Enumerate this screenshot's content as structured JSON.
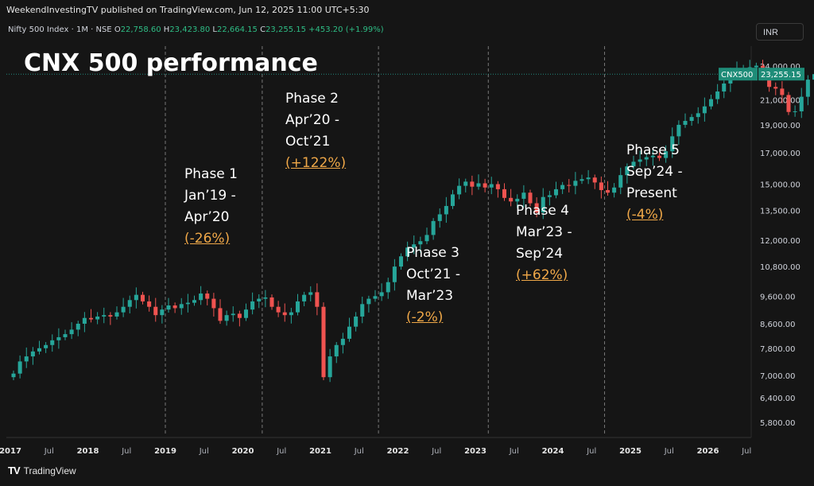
{
  "header": {
    "publisher": "WeekendInvestingTV published on TradingView.com, Jun 12, 2025 11:00 UTC+5:30",
    "symbol": "Nifty 500 Index · 1M · NSE",
    "open_label": "O",
    "open": "22,758.60",
    "high_label": "H",
    "high": "23,423.80",
    "low_label": "L",
    "low": "22,664.15",
    "close_label": "C",
    "close": "23,255.15",
    "change": "+453.20 (+1.99%)",
    "currency_button": "INR"
  },
  "title": "CNX 500 performance",
  "phases": [
    {
      "name": "Phase 1",
      "range": "Jan’19 -",
      "end": "Apr’20",
      "pct": "(-26%)"
    },
    {
      "name": "Phase 2",
      "range": "Apr’20 -",
      "end": "Oct’21",
      "pct": "(+122%)"
    },
    {
      "name": "Phase 3",
      "range": "Oct’21 -",
      "end": "Mar’23",
      "pct": "(-2%)"
    },
    {
      "name": "Phase 4",
      "range": "Mar’23 -",
      "end": "Sep’24",
      "pct": "(+62%)"
    },
    {
      "name": "Phase 5",
      "range": "Sep’24 -",
      "end": "Present",
      "pct": "(-4%)"
    }
  ],
  "price_label": {
    "symbol": "CNX500",
    "value": "23,255.15"
  },
  "footer": {
    "brand": "TradingView"
  },
  "colors": {
    "up": "#26a69a",
    "down": "#ef5350",
    "bg": "#151515",
    "grid": "#2a2a2a",
    "accent": "#f0a848",
    "label_bg": "#1e8c78"
  },
  "chart_data": {
    "type": "candlestick",
    "scale": "log",
    "ylim": [
      5500,
      26000
    ],
    "y_ticks": [
      "24,000.00",
      "21,000.00",
      "19,000.00",
      "17,000.00",
      "15,000.00",
      "13,500.00",
      "12,000.00",
      "10,800.00",
      "9,600.00",
      "8,600.00",
      "7,800.00",
      "7,000.00",
      "6,400.00",
      "5,800.00"
    ],
    "x_ticks": [
      {
        "label": "2017",
        "x": 0.0
      },
      {
        "label": "Jul",
        "x": 0.5
      },
      {
        "label": "2018",
        "x": 1.0
      },
      {
        "label": "Jul",
        "x": 1.5
      },
      {
        "label": "2019",
        "x": 2.0
      },
      {
        "label": "Jul",
        "x": 2.5
      },
      {
        "label": "2020",
        "x": 3.0
      },
      {
        "label": "Jul",
        "x": 3.5
      },
      {
        "label": "2021",
        "x": 4.0
      },
      {
        "label": "Jul",
        "x": 4.5
      },
      {
        "label": "2022",
        "x": 5.0
      },
      {
        "label": "Jul",
        "x": 5.5
      },
      {
        "label": "2023",
        "x": 6.0
      },
      {
        "label": "Jul",
        "x": 6.5
      },
      {
        "label": "2024",
        "x": 7.0
      },
      {
        "label": "Jul",
        "x": 7.5
      },
      {
        "label": "2025",
        "x": 8.0
      },
      {
        "label": "Jul",
        "x": 8.5
      },
      {
        "label": "2026",
        "x": 9.0
      },
      {
        "label": "Jul",
        "x": 9.5
      }
    ],
    "phase_lines": [
      2.0,
      3.25,
      4.75,
      6.167,
      7.667
    ],
    "last_price": 23255.15,
    "closes": [
      7050,
      7400,
      7550,
      7700,
      7800,
      7900,
      8050,
      8150,
      8250,
      8400,
      8600,
      8800,
      8750,
      8850,
      8900,
      8850,
      9000,
      9200,
      9450,
      9650,
      9400,
      9200,
      8900,
      9100,
      9250,
      9150,
      9300,
      9350,
      9450,
      9700,
      9500,
      9150,
      8700,
      8900,
      8950,
      8800,
      9100,
      9400,
      9500,
      9550,
      9200,
      9000,
      8900,
      9000,
      9400,
      9650,
      9750,
      9200,
      6950,
      7550,
      7900,
      8100,
      8500,
      8850,
      9300,
      9500,
      9600,
      9750,
      10150,
      10800,
      11250,
      11650,
      11800,
      11950,
      12250,
      12950,
      13300,
      13750,
      14400,
      14900,
      15150,
      14850,
      15050,
      14800,
      15000,
      14700,
      14200,
      14000,
      14150,
      14500,
      13900,
      13400,
      14250,
      14350,
      14700,
      14950,
      14900,
      15200,
      15300,
      15400,
      15100,
      14650,
      14500,
      14800,
      15550,
      16100,
      16400,
      16550,
      16700,
      16800,
      16650,
      17100,
      18150,
      19000,
      19300,
      19600,
      19900,
      20450,
      21050,
      21700,
      22400,
      23300,
      23600,
      23700,
      23900,
      24050,
      22950,
      22100,
      21950,
      21400,
      20000,
      20050,
      21250,
      22750,
      23255
    ]
  }
}
